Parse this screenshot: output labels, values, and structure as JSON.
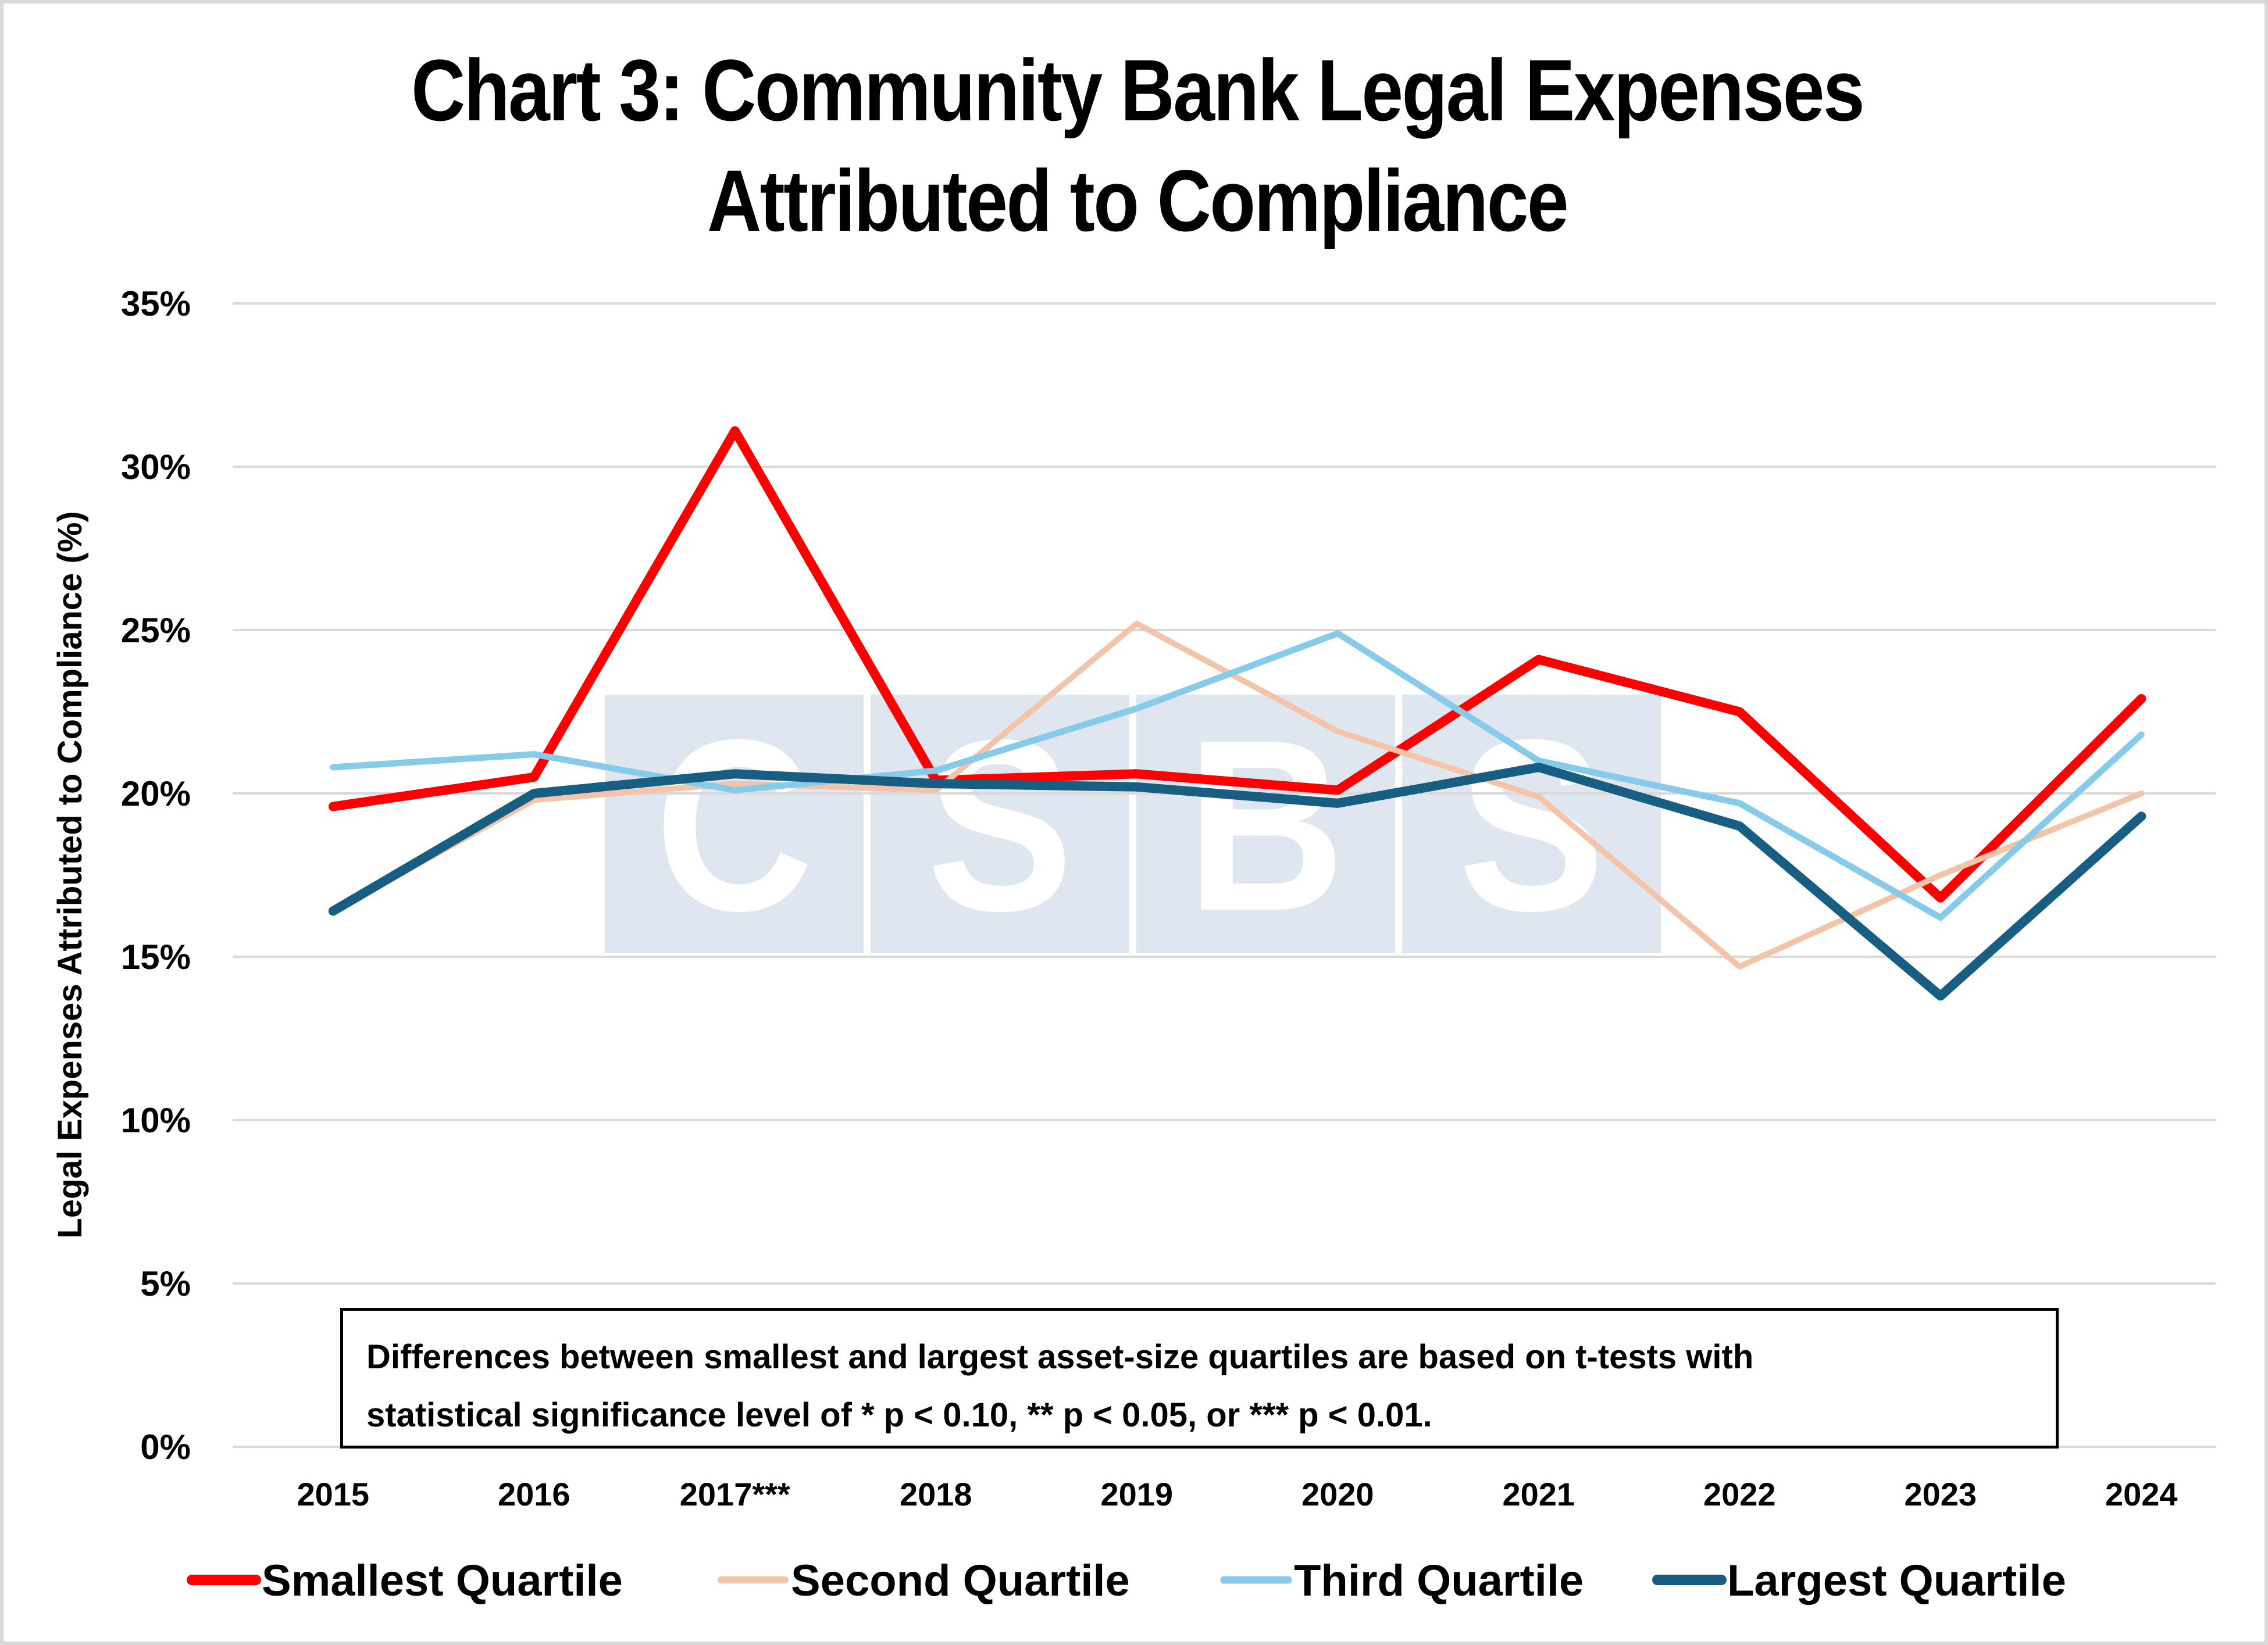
{
  "chart_data": {
    "type": "line",
    "title": "Chart 3: Community Bank Legal Expenses Attributed to Compliance",
    "title_lines": [
      "Chart 3: Community Bank Legal Expenses",
      "Attributed to Compliance"
    ],
    "xlabel": "",
    "ylabel": "Legal Expenses Attributed to Compliance (%)",
    "ylim": [
      0,
      35
    ],
    "y_ticks": [
      0,
      5,
      10,
      15,
      20,
      25,
      30,
      35
    ],
    "y_tick_labels": [
      "0%",
      "5%",
      "10%",
      "15%",
      "20%",
      "25%",
      "30%",
      "35%"
    ],
    "grid": true,
    "categories": [
      "2015",
      "2016",
      "2017***",
      "2018",
      "2019",
      "2020",
      "2021",
      "2022",
      "2023",
      "2024"
    ],
    "series": [
      {
        "name": "Smallest Quartile",
        "color": "#ff0000",
        "values": [
          19.6,
          20.5,
          31.1,
          20.4,
          20.6,
          20.1,
          24.1,
          22.5,
          16.8,
          22.9
        ]
      },
      {
        "name": "Second Quartile",
        "color": "#f4c4a8",
        "values": [
          16.4,
          19.8,
          20.3,
          20.1,
          25.2,
          21.9,
          19.9,
          14.7,
          17.5,
          20.0
        ]
      },
      {
        "name": "Third Quartile",
        "color": "#87cbea",
        "values": [
          20.8,
          21.2,
          20.1,
          20.7,
          22.6,
          24.9,
          21.0,
          19.7,
          16.2,
          21.8
        ]
      },
      {
        "name": "Largest Quartile",
        "color": "#175e82",
        "values": [
          16.4,
          20.0,
          20.6,
          20.3,
          20.2,
          19.7,
          20.8,
          19.0,
          13.8,
          19.3
        ]
      }
    ],
    "legend_position": "bottom",
    "annotation": [
      "Differences between smallest and largest asset-size quartiles are based on t-tests with",
      "statistical significance level of * p < 0.10, ** p < 0.05, or *** p < 0.01."
    ],
    "watermark": {
      "text": [
        "C",
        "S",
        "B",
        "S"
      ],
      "color": "#dfe6ef"
    }
  }
}
